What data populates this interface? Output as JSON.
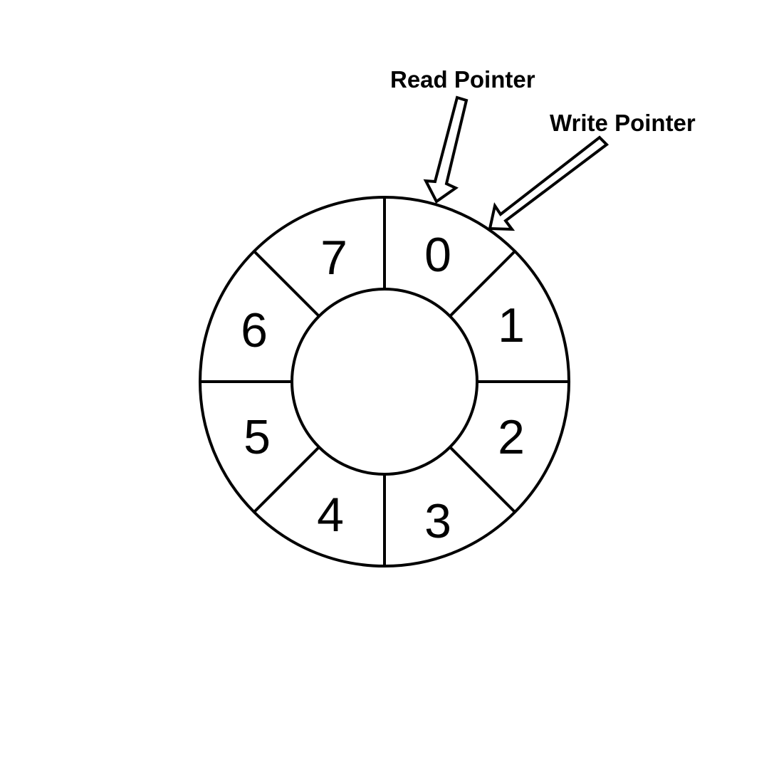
{
  "ring_buffer": {
    "segments": [
      "0",
      "1",
      "2",
      "3",
      "4",
      "5",
      "6",
      "7"
    ],
    "stroke_color": "#000000",
    "fill_color": "#ffffff"
  },
  "pointers": {
    "read": {
      "label": "Read Pointer",
      "slot": "0"
    },
    "write": {
      "label": "Write Pointer",
      "slot": "0"
    }
  }
}
